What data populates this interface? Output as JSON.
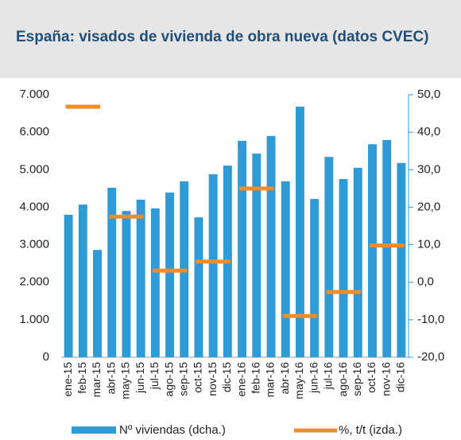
{
  "chart_data": {
    "type": "bar-line",
    "title": "España: visados de vivienda de obra nueva (datos CVEC)",
    "categories": [
      "ene-15",
      "feb-15",
      "mar-15",
      "abr-15",
      "may-15",
      "jun-15",
      "jul-15",
      "ago-15",
      "sep-15",
      "oct-15",
      "nov-15",
      "dic-15",
      "ene-16",
      "feb-16",
      "mar-16",
      "abr-16",
      "may-16",
      "jun-16",
      "jul-16",
      "ago-16",
      "sep-16",
      "oct-16",
      "nov-16",
      "dic-16"
    ],
    "series": [
      {
        "name": "Nº viviendas (dcha.)",
        "type": "bar",
        "color": "#2e9bd6",
        "values": [
          3800,
          4070,
          2860,
          4520,
          3900,
          4200,
          3970,
          4390,
          4690,
          3730,
          4880,
          5110,
          5770,
          5430,
          5900,
          4690,
          6680,
          4220,
          5340,
          4750,
          5050,
          5680,
          5790,
          5180
        ]
      },
      {
        "name": "%, t/t (izda.)",
        "type": "marker",
        "axis": "y2",
        "color": "#f28c28",
        "values": [
          null,
          46.8,
          null,
          null,
          17.5,
          null,
          null,
          3.1,
          null,
          null,
          5.5,
          null,
          null,
          25.0,
          null,
          null,
          -9.0,
          null,
          null,
          -2.6,
          null,
          null,
          9.8,
          null
        ]
      }
    ],
    "ylim": [
      0,
      7000
    ],
    "yticks": [
      {
        "value": 0,
        "label": "0"
      },
      {
        "value": 1000,
        "label": "1.000"
      },
      {
        "value": 2000,
        "label": "2.000"
      },
      {
        "value": 3000,
        "label": "3.000"
      },
      {
        "value": 4000,
        "label": "4.000"
      },
      {
        "value": 5000,
        "label": "5.000"
      },
      {
        "value": 6000,
        "label": "6.000"
      },
      {
        "value": 7000,
        "label": "7.000"
      }
    ],
    "y2lim": [
      -20,
      50
    ],
    "y2ticks": [
      {
        "value": -20,
        "label": "-20,0"
      },
      {
        "value": -10,
        "label": "-10,0"
      },
      {
        "value": 0,
        "label": "0,0"
      },
      {
        "value": 10,
        "label": "10,0"
      },
      {
        "value": 20,
        "label": "20,0"
      },
      {
        "value": 30,
        "label": "30,0"
      },
      {
        "value": 40,
        "label": "40,0"
      },
      {
        "value": 50,
        "label": "50,0"
      }
    ]
  }
}
